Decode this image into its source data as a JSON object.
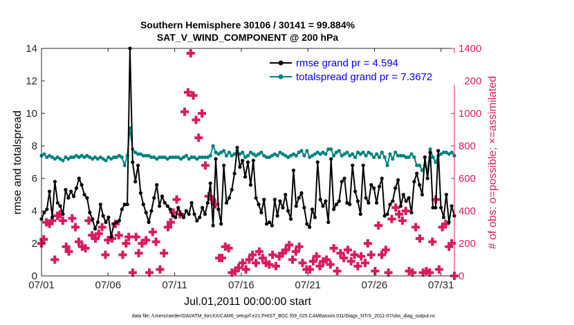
{
  "chart_data": {
    "type": "line",
    "title": "Southern Hemisphere 30106 / 30141 = 99.884%",
    "subtitle": "SAT_V_WIND_COMPONENT @ 200 hPa",
    "xlabel": "Jul.01,2011 00:00:00 start",
    "ylabel_left": "rmse and totalspread",
    "ylabel_right": "# of obs: o=possible; ×=assimilated",
    "footer": "data file: /Users/raeder/DAI/ATM_forcXX/CAM6_setup/f.e21.FHIST_BGC.f09_025.CAM6assim.011/Diags_NTrS_2011-07/obs_diag_output.nc",
    "x_tick_labels": [
      "07/01",
      "07/06",
      "07/11",
      "07/16",
      "07/21",
      "07/26",
      "07/31"
    ],
    "x_tick_values": [
      0,
      5,
      10,
      15,
      20,
      25,
      30
    ],
    "xlim": [
      0,
      31
    ],
    "ylim_left": [
      0,
      14
    ],
    "y_left_ticks": [
      0,
      2,
      4,
      6,
      8,
      10,
      12,
      14
    ],
    "ylim_right": [
      0,
      1400
    ],
    "y_right_ticks": [
      0,
      200,
      400,
      600,
      800,
      1000,
      1200,
      1400
    ],
    "legend_position": "top-right",
    "colors": {
      "rmse": "#000000",
      "totalspread": "#008080",
      "obs": "#d81b60",
      "legend_text": "#0000ff"
    },
    "series": [
      {
        "name": "rmse grand pr = 4.594",
        "color": "#000000",
        "marker": "dot",
        "values": [
          3.5,
          3.9,
          4.1,
          5.2,
          3.6,
          5.8,
          4.5,
          4.3,
          3.8,
          5.3,
          4.8,
          5.2,
          4.9,
          5.4,
          6.0,
          5.6,
          5.0,
          4.8,
          3.9,
          3.5,
          2.9,
          3.3,
          4.4,
          3.7,
          3.3,
          3.6,
          2.4,
          3.2,
          3.3,
          3.4,
          4.1,
          4.4,
          4.4,
          14.0,
          7.0,
          5.8,
          6.8,
          5.1,
          4.4,
          3.9,
          3.3,
          4.0,
          4.8,
          5.6,
          4.3,
          4.9,
          4.5,
          4.3,
          4.1,
          3.7,
          3.6,
          4.2,
          3.8,
          3.6,
          4.0,
          3.8,
          4.5,
          3.8,
          3.4,
          3.6,
          4.2,
          3.8,
          4.5,
          5.7,
          3.1,
          7.2,
          4.1,
          3.2,
          6.8,
          4.5,
          4.8,
          5.3,
          6.3,
          7.9,
          6.7,
          7.1,
          6.1,
          7.0,
          5.6,
          7.1,
          4.8,
          4.4,
          3.9,
          4.7,
          3.2,
          3.3,
          3.1,
          4.7,
          3.7,
          4.6,
          4.2,
          5.0,
          4.0,
          3.5,
          6.5,
          4.3,
          4.8,
          5.1,
          4.2,
          3.2,
          3.0,
          4.1,
          3.6,
          7.0,
          4.7,
          4.3,
          4.6,
          3.3,
          7.2,
          4.1,
          4.4,
          4.6,
          5.8,
          6.0,
          4.5,
          4.4,
          6.8,
          5.2,
          4.6,
          3.8,
          6.8,
          4.8,
          4.5,
          5.6,
          5.4,
          4.5,
          5.5,
          6.0,
          3.7,
          3.8,
          4.4,
          4.6,
          5.4,
          5.9,
          4.3,
          5.0,
          4.6,
          4.8,
          3.9,
          5.8,
          6.3,
          5.6,
          5.0,
          7.3,
          6.0,
          7.6,
          4.2,
          4.2,
          7.7,
          4.2,
          3.6,
          5.0,
          3.3,
          4.3,
          3.7
        ]
      },
      {
        "name": "totalspread grand pr = 7.3672",
        "color": "#008080",
        "marker": "dot",
        "values": [
          7.4,
          7.5,
          7.3,
          7.4,
          7.3,
          7.2,
          7.3,
          7.2,
          7.1,
          7.3,
          7.2,
          7.3,
          7.3,
          7.4,
          7.3,
          7.4,
          7.3,
          7.4,
          7.3,
          7.2,
          7.3,
          7.2,
          7.3,
          7.2,
          7.1,
          7.3,
          7.2,
          7.3,
          7.3,
          7.4,
          7.3,
          6.8,
          7.4,
          9.1,
          7.8,
          7.6,
          7.5,
          7.5,
          7.4,
          7.4,
          7.4,
          7.3,
          7.3,
          7.2,
          7.3,
          7.3,
          7.3,
          7.2,
          7.3,
          7.3,
          7.3,
          7.3,
          7.2,
          7.3,
          7.4,
          7.2,
          7.3,
          7.3,
          7.2,
          7.3,
          7.3,
          7.3,
          7.3,
          7.4,
          8.0,
          7.6,
          7.5,
          7.6,
          7.7,
          7.4,
          7.6,
          7.4,
          7.5,
          7.7,
          7.5,
          7.6,
          7.3,
          7.4,
          7.6,
          7.5,
          7.4,
          7.5,
          7.6,
          7.4,
          7.3,
          7.3,
          7.4,
          7.5,
          7.4,
          7.6,
          7.5,
          7.4,
          7.3,
          7.4,
          7.5,
          7.4,
          7.6,
          7.7,
          7.4,
          7.7,
          7.3,
          7.4,
          7.5,
          7.6,
          7.5,
          7.6,
          7.5,
          7.8,
          7.8,
          7.4,
          7.6,
          7.7,
          7.4,
          7.5,
          7.6,
          7.4,
          7.5,
          7.3,
          7.6,
          7.5,
          7.6,
          7.4,
          7.6,
          7.5,
          7.3,
          7.5,
          7.3,
          7.6,
          7.3,
          6.8,
          7.5,
          7.2,
          7.6,
          7.4,
          7.4,
          7.4,
          7.3,
          7.3,
          7.5,
          7.3,
          6.8,
          6.8,
          6.5,
          6.8,
          6.5,
          7.8,
          7.3,
          7.0,
          7.4,
          7.5,
          7.6,
          7.6,
          7.5,
          7.6,
          7.4
        ]
      }
    ],
    "obs_assimilated_points": [
      [
        0.0,
        200
      ],
      [
        0.17,
        225
      ],
      [
        0.37,
        330
      ],
      [
        0.6,
        320
      ],
      [
        0.8,
        340
      ],
      [
        1.0,
        100
      ],
      [
        1.2,
        370
      ],
      [
        1.4,
        380
      ],
      [
        1.6,
        340
      ],
      [
        1.85,
        180
      ],
      [
        2.05,
        150
      ],
      [
        2.3,
        355
      ],
      [
        2.55,
        300
      ],
      [
        2.8,
        210
      ],
      [
        3.05,
        180
      ],
      [
        3.3,
        170
      ],
      [
        3.55,
        340
      ],
      [
        3.8,
        250
      ],
      [
        4.05,
        230
      ],
      [
        4.3,
        260
      ],
      [
        4.55,
        300
      ],
      [
        4.8,
        130
      ],
      [
        5.0,
        220
      ],
      [
        5.3,
        230
      ],
      [
        5.55,
        320
      ],
      [
        5.8,
        250
      ],
      [
        6.1,
        130
      ],
      [
        6.35,
        200
      ],
      [
        6.55,
        240
      ],
      [
        6.85,
        20
      ],
      [
        7.1,
        240
      ],
      [
        7.3,
        140
      ],
      [
        7.55,
        200
      ],
      [
        7.85,
        220
      ],
      [
        8.1,
        20
      ],
      [
        8.35,
        270
      ],
      [
        8.6,
        210
      ],
      [
        8.9,
        40
      ],
      [
        9.2,
        140
      ],
      [
        9.5,
        300
      ],
      [
        9.7,
        330
      ],
      [
        9.9,
        390
      ],
      [
        10.15,
        470
      ],
      [
        10.4,
        380
      ],
      [
        10.75,
        1010
      ],
      [
        11.0,
        1130
      ],
      [
        11.2,
        1370
      ],
      [
        11.4,
        1110
      ],
      [
        11.6,
        960
      ],
      [
        11.8,
        850
      ],
      [
        12.05,
        1000
      ],
      [
        12.3,
        680
      ],
      [
        12.55,
        490
      ],
      [
        12.8,
        470
      ],
      [
        13.05,
        440
      ],
      [
        13.35,
        110
      ],
      [
        13.55,
        110
      ],
      [
        13.8,
        180
      ],
      [
        14.05,
        170
      ],
      [
        14.3,
        20
      ],
      [
        14.55,
        30
      ],
      [
        14.8,
        50
      ],
      [
        15.1,
        80
      ],
      [
        15.35,
        40
      ],
      [
        15.6,
        100
      ],
      [
        15.85,
        130
      ],
      [
        16.1,
        80
      ],
      [
        16.35,
        150
      ],
      [
        16.6,
        110
      ],
      [
        16.85,
        80
      ],
      [
        17.1,
        70
      ],
      [
        17.35,
        130
      ],
      [
        17.6,
        60
      ],
      [
        17.85,
        120
      ],
      [
        18.1,
        140
      ],
      [
        18.35,
        160
      ],
      [
        18.6,
        190
      ],
      [
        18.85,
        100
      ],
      [
        19.1,
        150
      ],
      [
        19.35,
        180
      ],
      [
        19.6,
        80
      ],
      [
        19.9,
        40
      ],
      [
        20.15,
        40
      ],
      [
        20.4,
        90
      ],
      [
        20.65,
        120
      ],
      [
        20.9,
        60
      ],
      [
        21.15,
        90
      ],
      [
        21.4,
        100
      ],
      [
        21.7,
        70
      ],
      [
        21.95,
        170
      ],
      [
        22.2,
        30
      ],
      [
        22.45,
        140
      ],
      [
        22.7,
        110
      ],
      [
        23.0,
        160
      ],
      [
        23.25,
        90
      ],
      [
        23.5,
        130
      ],
      [
        23.75,
        60
      ],
      [
        24.0,
        120
      ],
      [
        24.3,
        80
      ],
      [
        24.5,
        200
      ],
      [
        24.75,
        130
      ],
      [
        25.05,
        30
      ],
      [
        25.3,
        310
      ],
      [
        25.55,
        130
      ],
      [
        25.85,
        160
      ],
      [
        26.05,
        20
      ],
      [
        26.3,
        350
      ],
      [
        26.6,
        420
      ],
      [
        26.85,
        380
      ],
      [
        27.1,
        340
      ],
      [
        27.35,
        400
      ],
      [
        27.6,
        30
      ],
      [
        27.85,
        20
      ],
      [
        28.1,
        300
      ],
      [
        28.4,
        230
      ],
      [
        28.65,
        20
      ],
      [
        28.9,
        30
      ],
      [
        29.15,
        20
      ],
      [
        29.35,
        210
      ],
      [
        29.6,
        470
      ],
      [
        29.85,
        40
      ],
      [
        30.1,
        300
      ],
      [
        30.35,
        320
      ],
      [
        30.6,
        180
      ],
      [
        30.8,
        200
      ],
      [
        31.0,
        0
      ]
    ]
  }
}
